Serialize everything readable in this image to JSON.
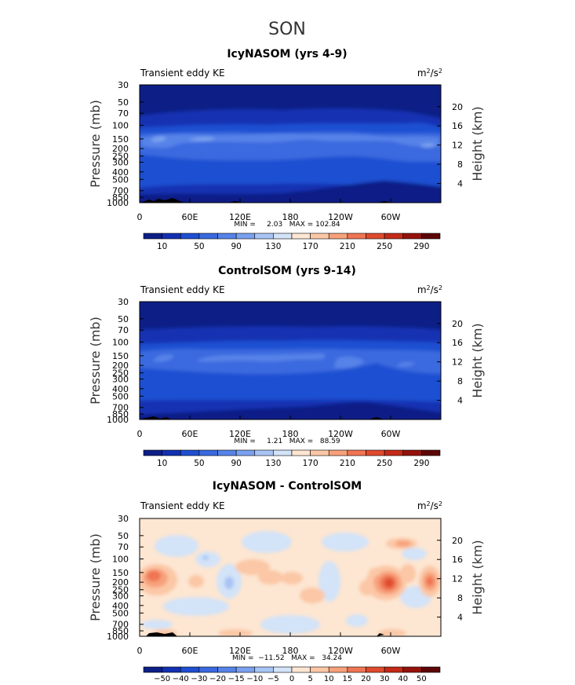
{
  "figure": {
    "title": "SON"
  },
  "colorbars": {
    "full": {
      "colors": [
        "#0d1f86",
        "#1330b2",
        "#1f4fd1",
        "#3a69df",
        "#5683e8",
        "#7aa1ef",
        "#a7c4f4",
        "#d3e3f8",
        "#fde6d2",
        "#fbc7a6",
        "#f7a17b",
        "#ef7553",
        "#df4b2e",
        "#c42a18",
        "#94120c",
        "#5c0608"
      ],
      "labels": [
        "10",
        "50",
        "90",
        "130",
        "170",
        "210",
        "250",
        "290"
      ]
    },
    "diff": {
      "colors": [
        "#0d1f86",
        "#1330b2",
        "#1f4fd1",
        "#3a69df",
        "#5683e8",
        "#7aa1ef",
        "#a7c4f4",
        "#d3e3f8",
        "#fde6d2",
        "#fbc7a6",
        "#f7a17b",
        "#ef7553",
        "#df4b2e",
        "#c42a18",
        "#94120c",
        "#5c0608"
      ],
      "labels": [
        "−50",
        "−40",
        "−30",
        "−20",
        "−15",
        "−10",
        "−5",
        "0",
        "5",
        "10",
        "15",
        "20",
        "30",
        "40",
        "50"
      ]
    }
  },
  "chart_data": [
    {
      "type": "heatmap",
      "title": "IcyNASOM (yrs 4-9)",
      "left_label": "Transient eddy KE",
      "units": "m²/s²",
      "ylabel": "Pressure (mb)",
      "ylabel_right": "Height (km)",
      "yticks": [
        "30",
        "50",
        "70",
        "100",
        "150",
        "200",
        "250",
        "300",
        "400",
        "500",
        "700",
        "850",
        "1000"
      ],
      "yticks_right": [
        "20",
        "16",
        "12",
        "8",
        "4"
      ],
      "xticks": [
        "0",
        "60E",
        "120E",
        "180",
        "120W",
        "60W"
      ],
      "min": 2.03,
      "max": 102.84,
      "stats_text": "MIN =     2.03   MAX = 102.84",
      "band_levels_by_pressure": {
        "1000": 1,
        "700": 2,
        "500": 2,
        "400": 2,
        "300": 3,
        "250": 3,
        "200": 4,
        "150": 5,
        "100": 2,
        "70": 1,
        "50": 0,
        "30": 0
      },
      "colorbar": "full"
    },
    {
      "type": "heatmap",
      "title": "ControlSOM (yrs 9-14)",
      "left_label": "Transient eddy KE",
      "units": "m²/s²",
      "ylabel": "Pressure (mb)",
      "ylabel_right": "Height (km)",
      "yticks": [
        "30",
        "50",
        "70",
        "100",
        "150",
        "200",
        "250",
        "300",
        "400",
        "500",
        "700",
        "850",
        "1000"
      ],
      "yticks_right": [
        "20",
        "16",
        "12",
        "8",
        "4"
      ],
      "xticks": [
        "0",
        "60E",
        "120E",
        "180",
        "120W",
        "60W"
      ],
      "min": 1.21,
      "max": 88.59,
      "stats_text": "MIN =     1.21   MAX =   88.59",
      "band_levels_by_pressure": {
        "1000": 1,
        "700": 2,
        "500": 2,
        "400": 2,
        "300": 3,
        "250": 3,
        "200": 4,
        "150": 4,
        "100": 2,
        "70": 1,
        "50": 0,
        "30": 0
      },
      "colorbar": "full"
    },
    {
      "type": "heatmap",
      "title": "IcyNASOM - ControlSOM",
      "left_label": "Transient eddy KE",
      "units": "m²/s²",
      "ylabel": "Pressure (mb)",
      "ylabel_right": "Height (km)",
      "yticks": [
        "30",
        "50",
        "70",
        "100",
        "150",
        "200",
        "250",
        "300",
        "400",
        "500",
        "700",
        "850",
        "1000"
      ],
      "yticks_right": [
        "20",
        "16",
        "12",
        "8",
        "4"
      ],
      "xticks": [
        "0",
        "60E",
        "120E",
        "180",
        "120W",
        "60W"
      ],
      "min": -11.52,
      "max": 34.24,
      "stats_text": "MIN =  −11.52   MAX =   34.24",
      "colorbar": "diff"
    }
  ]
}
